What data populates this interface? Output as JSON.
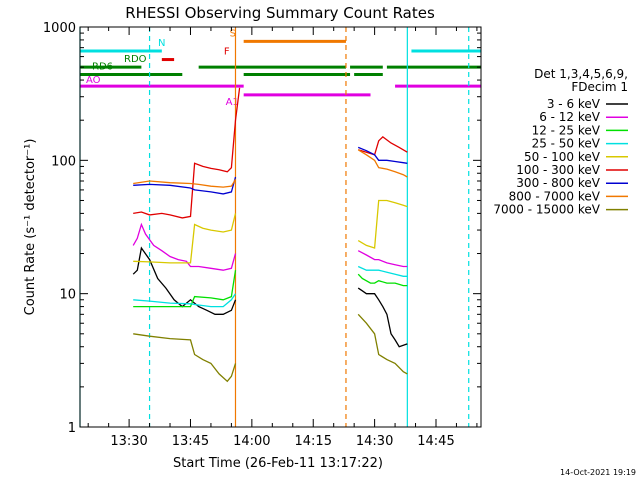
{
  "chart_data": {
    "type": "line",
    "title": "RHESSI Observing Summary Count Rates",
    "xlabel": "Start Time (26-Feb-11 13:17:22)",
    "ylabel": "Count Rate (s⁻¹ detector⁻¹)",
    "y_scale": "log",
    "ylim": [
      1,
      1000
    ],
    "xlim": [
      "13:18",
      "14:56"
    ],
    "x_ticks": [
      "13:30",
      "13:45",
      "14:00",
      "14:15",
      "14:30",
      "14:45"
    ],
    "y_ticks": [
      "1",
      "10",
      "100",
      "1000"
    ],
    "footer": "14-Oct-2021 19:19",
    "legend": {
      "placement": "right",
      "header": [
        "Det 1,3,4,5,6,9,",
        "FDecim 1"
      ],
      "entries": [
        {
          "label": "3 - 6 keV",
          "color": "#000000"
        },
        {
          "label": "6 - 12 keV",
          "color": "#e000e0"
        },
        {
          "label": "12 - 25 keV",
          "color": "#00e000"
        },
        {
          "label": "25 - 50 keV",
          "color": "#00e0e0"
        },
        {
          "label": "50 - 100 keV",
          "color": "#d8c800"
        },
        {
          "label": "100 - 300 keV",
          "color": "#e00000"
        },
        {
          "label": "300 - 800 keV",
          "color": "#0000d0"
        },
        {
          "label": "800 - 7000 keV",
          "color": "#f07800"
        },
        {
          "label": "7000 - 15000 keV",
          "color": "#808000"
        }
      ]
    },
    "series": [
      {
        "name": "3 - 6 keV",
        "color": "#000000",
        "segments": [
          [
            [
              "13:31",
              14
            ],
            [
              "13:32",
              15
            ],
            [
              "13:33",
              22
            ],
            [
              "13:35",
              18
            ],
            [
              "13:37",
              13
            ],
            [
              "13:39",
              11
            ],
            [
              "13:41",
              9
            ],
            [
              "13:43",
              8
            ],
            [
              "13:45",
              9
            ],
            [
              "13:47",
              8
            ],
            [
              "13:49",
              7.5
            ],
            [
              "13:51",
              7
            ],
            [
              "13:53",
              7
            ],
            [
              "13:55",
              7.5
            ],
            [
              "13:56",
              9
            ]
          ],
          [
            [
              "14:26",
              11
            ],
            [
              "14:27",
              10.5
            ],
            [
              "14:28",
              10
            ],
            [
              "14:30",
              10
            ],
            [
              "14:31",
              9
            ],
            [
              "14:32",
              8
            ],
            [
              "14:33",
              7
            ],
            [
              "14:34",
              5
            ],
            [
              "14:35",
              4.5
            ],
            [
              "14:36",
              4
            ],
            [
              "14:38",
              4.2
            ]
          ]
        ]
      },
      {
        "name": "6 - 12 keV",
        "color": "#e000e0",
        "segments": [
          [
            [
              "13:31",
              23
            ],
            [
              "13:32",
              26
            ],
            [
              "13:33",
              33
            ],
            [
              "13:34",
              28
            ],
            [
              "13:36",
              23
            ],
            [
              "13:38",
              21
            ],
            [
              "13:40",
              19
            ],
            [
              "13:42",
              18
            ],
            [
              "13:44",
              17.5
            ],
            [
              "13:45",
              16
            ],
            [
              "13:47",
              16
            ],
            [
              "13:50",
              15.5
            ],
            [
              "13:53",
              15
            ],
            [
              "13:55",
              15.5
            ],
            [
              "13:56",
              20
            ]
          ],
          [
            [
              "14:26",
              21
            ],
            [
              "14:28",
              19.5
            ],
            [
              "14:30",
              18
            ],
            [
              "14:31",
              18
            ],
            [
              "14:33",
              17
            ],
            [
              "14:35",
              16.5
            ],
            [
              "14:37",
              16
            ],
            [
              "14:38",
              16
            ]
          ]
        ]
      },
      {
        "name": "12 - 25 keV",
        "color": "#00e000",
        "segments": [
          [
            [
              "13:31",
              8
            ],
            [
              "13:35",
              8
            ],
            [
              "13:40",
              8
            ],
            [
              "13:45",
              8
            ],
            [
              "13:46",
              9.5
            ],
            [
              "13:50",
              9.3
            ],
            [
              "13:53",
              9
            ],
            [
              "13:55",
              9.5
            ],
            [
              "13:56",
              15
            ]
          ],
          [
            [
              "14:26",
              14
            ],
            [
              "14:27",
              13
            ],
            [
              "14:29",
              12
            ],
            [
              "14:30",
              12
            ],
            [
              "14:31",
              12.5
            ],
            [
              "14:33",
              12
            ],
            [
              "14:35",
              12
            ],
            [
              "14:37",
              11.5
            ],
            [
              "14:38",
              11.5
            ]
          ]
        ]
      },
      {
        "name": "25 - 50 keV",
        "color": "#00e0e0",
        "segments": [
          [
            [
              "13:31",
              9
            ],
            [
              "13:35",
              8.8
            ],
            [
              "13:40",
              8.5
            ],
            [
              "13:45",
              8.4
            ],
            [
              "13:46",
              8.3
            ],
            [
              "13:50",
              8
            ],
            [
              "13:53",
              8
            ],
            [
              "13:55",
              9
            ],
            [
              "13:56",
              10
            ]
          ],
          [
            [
              "14:26",
              16
            ],
            [
              "14:28",
              15
            ],
            [
              "14:30",
              15
            ],
            [
              "14:31",
              15
            ],
            [
              "14:33",
              14.5
            ],
            [
              "14:35",
              14
            ],
            [
              "14:37",
              13.5
            ],
            [
              "14:38",
              13.5
            ]
          ]
        ]
      },
      {
        "name": "50 - 100 keV",
        "color": "#d8c800",
        "segments": [
          [
            [
              "13:31",
              17.5
            ],
            [
              "13:35",
              17.3
            ],
            [
              "13:40",
              17
            ],
            [
              "13:45",
              17
            ],
            [
              "13:46",
              33
            ],
            [
              "13:48",
              31
            ],
            [
              "13:50",
              30
            ],
            [
              "13:53",
              29
            ],
            [
              "13:55",
              30
            ],
            [
              "13:56",
              40
            ]
          ],
          [
            [
              "14:26",
              25
            ],
            [
              "14:28",
              23
            ],
            [
              "14:30",
              22
            ],
            [
              "14:31",
              50
            ],
            [
              "14:33",
              50
            ],
            [
              "14:35",
              48
            ],
            [
              "14:37",
              46
            ],
            [
              "14:38",
              45
            ]
          ]
        ]
      },
      {
        "name": "100 - 300 keV",
        "color": "#e00000",
        "segments": [
          [
            [
              "13:31",
              40
            ],
            [
              "13:33",
              41
            ],
            [
              "13:35",
              39
            ],
            [
              "13:38",
              40
            ],
            [
              "13:40",
              39
            ],
            [
              "13:43",
              37
            ],
            [
              "13:45",
              38
            ],
            [
              "13:46",
              95
            ],
            [
              "13:48",
              90
            ],
            [
              "13:50",
              87
            ],
            [
              "13:52",
              85
            ],
            [
              "13:54",
              82
            ],
            [
              "13:55",
              88
            ],
            [
              "13:56",
              200
            ],
            [
              "13:57",
              350
            ]
          ],
          [
            [
              "14:26",
              120
            ],
            [
              "14:28",
              115
            ],
            [
              "14:30",
              110
            ],
            [
              "14:31",
              140
            ],
            [
              "14:32",
              150
            ],
            [
              "14:34",
              135
            ],
            [
              "14:36",
              125
            ],
            [
              "14:38",
              115
            ]
          ]
        ]
      },
      {
        "name": "300 - 800 keV",
        "color": "#0000d0",
        "segments": [
          [
            [
              "13:31",
              65
            ],
            [
              "13:35",
              66
            ],
            [
              "13:40",
              65
            ],
            [
              "13:45",
              62
            ],
            [
              "13:46",
              60
            ],
            [
              "13:50",
              58
            ],
            [
              "13:53",
              56
            ],
            [
              "13:55",
              58
            ],
            [
              "13:56",
              75
            ]
          ],
          [
            [
              "14:26",
              125
            ],
            [
              "14:28",
              118
            ],
            [
              "14:30",
              110
            ],
            [
              "14:31",
              100
            ],
            [
              "14:33",
              100
            ],
            [
              "14:35",
              98
            ],
            [
              "14:37",
              96
            ],
            [
              "14:38",
              95
            ]
          ]
        ]
      },
      {
        "name": "800 - 7000 keV",
        "color": "#f07800",
        "segments": [
          [
            [
              "13:31",
              67
            ],
            [
              "13:35",
              70
            ],
            [
              "13:40",
              68
            ],
            [
              "13:45",
              67
            ],
            [
              "13:47",
              66
            ],
            [
              "13:50",
              64
            ],
            [
              "13:53",
              63
            ],
            [
              "13:55",
              64
            ],
            [
              "13:56",
              72
            ]
          ],
          [
            [
              "14:26",
              120
            ],
            [
              "14:28",
              110
            ],
            [
              "14:30",
              100
            ],
            [
              "14:31",
              88
            ],
            [
              "14:33",
              86
            ],
            [
              "14:35",
              82
            ],
            [
              "14:37",
              78
            ],
            [
              "14:38",
              75
            ]
          ]
        ]
      },
      {
        "name": "7000 - 15000 keV",
        "color": "#808000",
        "segments": [
          [
            [
              "13:31",
              5
            ],
            [
              "13:35",
              4.8
            ],
            [
              "13:40",
              4.6
            ],
            [
              "13:45",
              4.5
            ],
            [
              "13:46",
              3.5
            ],
            [
              "13:48",
              3.2
            ],
            [
              "13:50",
              3
            ],
            [
              "13:52",
              2.5
            ],
            [
              "13:54",
              2.2
            ],
            [
              "13:55",
              2.4
            ],
            [
              "13:56",
              3
            ]
          ],
          [
            [
              "14:26",
              7
            ],
            [
              "14:28",
              6
            ],
            [
              "14:30",
              5
            ],
            [
              "14:31",
              3.5
            ],
            [
              "14:33",
              3.2
            ],
            [
              "14:35",
              3
            ],
            [
              "14:37",
              2.6
            ],
            [
              "14:38",
              2.5
            ]
          ]
        ]
      }
    ],
    "flag_bars": [
      {
        "label": "N",
        "color": "#00e0e0",
        "y": 660,
        "segments": [
          [
            "13:18",
            "13:38"
          ],
          [
            "14:39",
            "14:56"
          ]
        ]
      },
      {
        "label": "F",
        "color": "#e00000",
        "y": 570,
        "segments": [
          [
            "13:38",
            "13:41"
          ]
        ]
      },
      {
        "label": "S",
        "color": "#f07800",
        "y": 780,
        "segments": [
          [
            "13:58",
            "14:23"
          ]
        ]
      },
      {
        "label": "RDO",
        "color": "#008000",
        "y": 500,
        "segments": [
          [
            "13:18",
            "13:33"
          ],
          [
            "13:47",
            "14:23"
          ],
          [
            "14:24",
            "14:32"
          ],
          [
            "14:33",
            "14:56"
          ]
        ]
      },
      {
        "label": "RD6",
        "color": "#008000",
        "y": 440,
        "segments": [
          [
            "13:18",
            "13:43"
          ],
          [
            "13:58",
            "14:24"
          ],
          [
            "14:25",
            "14:32"
          ]
        ]
      },
      {
        "label": "AO",
        "color": "#e000e0",
        "y": 360,
        "segments": [
          [
            "13:18",
            "13:58"
          ],
          [
            "14:35",
            "14:56"
          ]
        ]
      },
      {
        "label": "A1",
        "color": "#e000e0",
        "y": 310,
        "segments": [
          [
            "13:58",
            "14:29"
          ]
        ]
      }
    ],
    "vertical_markers": [
      {
        "x": "13:18",
        "color": "#00e0e0",
        "style": "solid"
      },
      {
        "x": "13:35",
        "color": "#00e0e0",
        "style": "dashed"
      },
      {
        "x": "13:56",
        "color": "#f07800",
        "style": "solid"
      },
      {
        "x": "14:23",
        "color": "#f07800",
        "style": "dashed"
      },
      {
        "x": "14:38",
        "color": "#00e0e0",
        "style": "solid"
      },
      {
        "x": "14:53",
        "color": "#00e0e0",
        "style": "dashed"
      }
    ]
  }
}
